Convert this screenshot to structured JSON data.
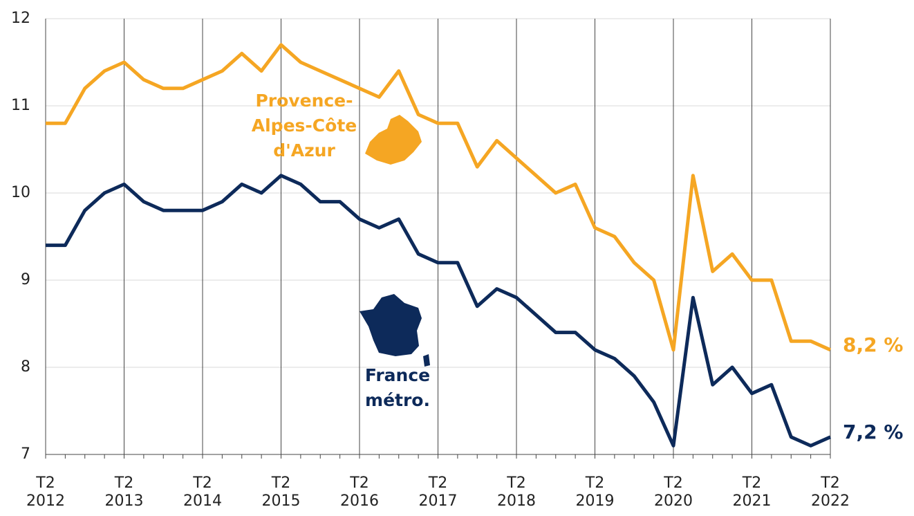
{
  "chart_data": {
    "type": "line",
    "categories": [
      "T2 2012",
      null,
      null,
      null,
      "T2 2013",
      null,
      null,
      null,
      "T2 2014",
      null,
      null,
      null,
      "T2 2015",
      null,
      null,
      null,
      "T2 2016",
      null,
      null,
      null,
      "T2 2017",
      null,
      null,
      null,
      "T2 2018",
      null,
      null,
      null,
      "T2 2019",
      null,
      null,
      null,
      "T2 2020",
      null,
      null,
      null,
      "T2 2021",
      null,
      null,
      null,
      "T2 2022"
    ],
    "series": [
      {
        "name": "Provence-Alpes-Côte d'Azur",
        "color": "#f5a623",
        "values": [
          10.8,
          10.8,
          11.2,
          11.4,
          11.5,
          11.3,
          11.2,
          11.2,
          11.3,
          11.4,
          11.6,
          11.4,
          11.7,
          11.5,
          11.4,
          11.3,
          11.2,
          11.1,
          11.4,
          10.9,
          10.8,
          10.8,
          10.3,
          10.6,
          10.4,
          10.2,
          10.0,
          10.1,
          9.6,
          9.5,
          9.2,
          9.0,
          8.2,
          10.2,
          9.1,
          9.3,
          9.0,
          9.0,
          8.3,
          8.3,
          8.2
        ],
        "value_labels": [
          null,
          null,
          null,
          null,
          null,
          null,
          null,
          null,
          null,
          null,
          null,
          null,
          null,
          null,
          null,
          null,
          null,
          null,
          null,
          null,
          null,
          null,
          null,
          null,
          null,
          null,
          null,
          null,
          null,
          null,
          null,
          null,
          null,
          null,
          null,
          null,
          null,
          null,
          null,
          null,
          "8,2 %"
        ]
      },
      {
        "name": "France métro.",
        "color": "#0d2a5a",
        "values": [
          9.4,
          9.4,
          9.8,
          10.0,
          10.1,
          9.9,
          9.8,
          9.8,
          9.8,
          9.9,
          10.1,
          10.0,
          10.2,
          10.1,
          9.9,
          9.9,
          9.7,
          9.6,
          9.7,
          9.3,
          9.2,
          9.2,
          8.7,
          8.9,
          8.8,
          8.6,
          8.4,
          8.4,
          8.2,
          8.1,
          7.9,
          7.6,
          7.1,
          8.8,
          7.8,
          8.0,
          7.7,
          7.8,
          7.2,
          7.1,
          7.2
        ],
        "value_labels": [
          null,
          null,
          null,
          null,
          null,
          null,
          null,
          null,
          null,
          null,
          null,
          null,
          null,
          null,
          null,
          null,
          null,
          null,
          null,
          null,
          null,
          null,
          null,
          null,
          null,
          null,
          null,
          null,
          null,
          null,
          null,
          null,
          null,
          null,
          null,
          null,
          null,
          null,
          null,
          null,
          "7,2 %"
        ]
      }
    ],
    "ylim": [
      7,
      12
    ],
    "yticks": [
      7,
      8,
      9,
      10,
      11,
      12
    ],
    "grid": true
  }
}
